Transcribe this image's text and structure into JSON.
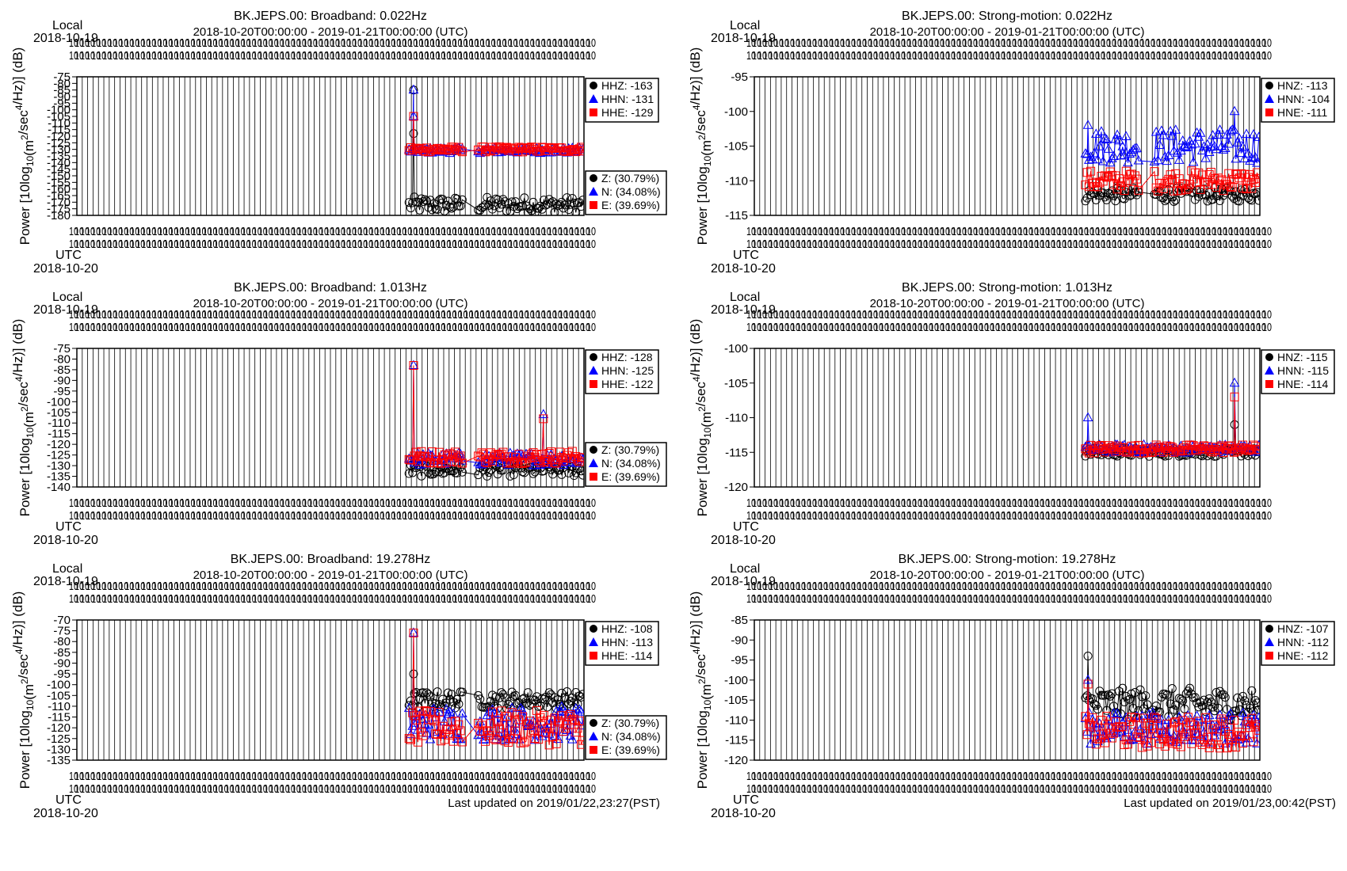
{
  "ylabel_text": "Power [10log",
  "ylabel_sub": "10",
  "ylabel_mid": "(m",
  "ylabel_sup1": "2",
  "ylabel_mid2": "/sec",
  "ylabel_sup2": "4",
  "ylabel_tail": "/Hz)] (dB)",
  "local_label": "Local",
  "local_date": "2018-10-19",
  "utc_label": "UTC",
  "utc_date": "2018-10-20",
  "date_range": "2018-10-20T00:00:00 - 2019-01-21T00:00:00 (UTC)",
  "colors": {
    "Z": "#000000",
    "N": "#0000ff",
    "E": "#ff0000"
  },
  "chart_data": [
    {
      "type": "scatter",
      "title": "BK.JEPS.00: Broadband: 0.022Hz",
      "ylim": [
        -180,
        -75
      ],
      "yticks": [
        -75,
        -80,
        -85,
        -90,
        -95,
        -100,
        -105,
        -110,
        -115,
        -120,
        -125,
        -130,
        -135,
        -140,
        -145,
        -150,
        -155,
        -160,
        -165,
        -170,
        -175,
        -180
      ],
      "legend_top": [
        "HHZ: -163",
        "HHN: -131",
        "HHE: -129"
      ],
      "legend_bottom": [
        "Z: (30.79%)",
        "N: (34.08%)",
        "E: (39.69%)"
      ],
      "footer": "",
      "data_start_frac": 0.655,
      "gap": [
        0.76,
        0.79
      ],
      "series": [
        {
          "key": "Z",
          "base": -172,
          "spread": 6,
          "spikes": [
            [
              0.664,
              -85
            ],
            [
              0.664,
              -118
            ]
          ]
        },
        {
          "key": "N",
          "base": -131,
          "spread": 2,
          "spikes": [
            [
              0.664,
              -85
            ],
            [
              0.664,
              -105
            ]
          ]
        },
        {
          "key": "E",
          "base": -130,
          "spread": 2,
          "spikes": [
            [
              0.664,
              -105
            ]
          ]
        }
      ]
    },
    {
      "type": "scatter",
      "title": "BK.JEPS.00: Strong-motion: 0.022Hz",
      "ylim": [
        -115,
        -95
      ],
      "yticks": [
        -95,
        -100,
        -105,
        -110,
        -115
      ],
      "legend_top": [
        "HNZ: -113",
        "HNN: -104",
        "HNE: -111"
      ],
      "legend_bottom": [],
      "footer": "",
      "data_start_frac": 0.655,
      "gap": [
        0.76,
        0.79
      ],
      "series": [
        {
          "key": "Z",
          "base": -112,
          "spread": 1,
          "spikes": []
        },
        {
          "key": "N",
          "base": -105,
          "spread": 2.5,
          "spikes": [
            [
              0.66,
              -102
            ],
            [
              0.95,
              -100
            ]
          ]
        },
        {
          "key": "E",
          "base": -110,
          "spread": 1.5,
          "spikes": []
        }
      ]
    },
    {
      "type": "scatter",
      "title": "BK.JEPS.00: Broadband: 1.013Hz",
      "ylim": [
        -140,
        -75
      ],
      "yticks": [
        -75,
        -80,
        -85,
        -90,
        -95,
        -100,
        -105,
        -110,
        -115,
        -120,
        -125,
        -130,
        -135,
        -140
      ],
      "legend_top": [
        "HHZ: -128",
        "HHN: -125",
        "HHE: -122"
      ],
      "legend_bottom": [
        "Z: (30.79%)",
        "N: (34.08%)",
        "E: (39.69%)"
      ],
      "footer": "",
      "data_start_frac": 0.655,
      "gap": [
        0.76,
        0.79
      ],
      "series": [
        {
          "key": "Z",
          "base": -132,
          "spread": 3,
          "spikes": []
        },
        {
          "key": "N",
          "base": -127,
          "spread": 3,
          "spikes": [
            [
              0.664,
              -83
            ],
            [
              0.92,
              -106
            ]
          ]
        },
        {
          "key": "E",
          "base": -126,
          "spread": 3,
          "spikes": [
            [
              0.664,
              -83
            ],
            [
              0.92,
              -108
            ]
          ]
        }
      ]
    },
    {
      "type": "scatter",
      "title": "BK.JEPS.00: Strong-motion: 1.013Hz",
      "ylim": [
        -120,
        -100
      ],
      "yticks": [
        -100,
        -105,
        -110,
        -115,
        -120
      ],
      "legend_top": [
        "HNZ: -115",
        "HNN: -115",
        "HNE: -114"
      ],
      "legend_bottom": [],
      "footer": "",
      "data_start_frac": 0.655,
      "gap": [
        2,
        2
      ],
      "series": [
        {
          "key": "Z",
          "base": -115,
          "spread": 0.6,
          "spikes": [
            [
              0.95,
              -111
            ]
          ]
        },
        {
          "key": "N",
          "base": -114.5,
          "spread": 0.6,
          "spikes": [
            [
              0.66,
              -110
            ],
            [
              0.95,
              -105
            ]
          ]
        },
        {
          "key": "E",
          "base": -114.5,
          "spread": 0.6,
          "spikes": [
            [
              0.95,
              -107
            ]
          ]
        }
      ]
    },
    {
      "type": "scatter",
      "title": "BK.JEPS.00: Broadband: 19.278Hz",
      "ylim": [
        -135,
        -70
      ],
      "yticks": [
        -70,
        -75,
        -80,
        -85,
        -90,
        -95,
        -100,
        -105,
        -110,
        -115,
        -120,
        -125,
        -130,
        -135
      ],
      "legend_top": [
        "HHZ: -108",
        "HHN: -113",
        "HHE: -114"
      ],
      "legend_bottom": [
        "Z: (30.79%)",
        "N: (34.08%)",
        "E: (39.69%)"
      ],
      "footer": "Last updated on 2019/01/22,23:27(PST)",
      "data_start_frac": 0.655,
      "gap": [
        0.76,
        0.79
      ],
      "series": [
        {
          "key": "Z",
          "base": -107,
          "spread": 4,
          "spikes": [
            [
              0.664,
              -95
            ]
          ]
        },
        {
          "key": "N",
          "base": -118,
          "spread": 8,
          "spikes": [
            [
              0.664,
              -76
            ]
          ]
        },
        {
          "key": "E",
          "base": -120,
          "spread": 8,
          "spikes": [
            [
              0.664,
              -76
            ]
          ]
        }
      ]
    },
    {
      "type": "scatter",
      "title": "BK.JEPS.00: Strong-motion: 19.278Hz",
      "ylim": [
        -120,
        -85
      ],
      "yticks": [
        -85,
        -90,
        -95,
        -100,
        -105,
        -110,
        -115,
        -120
      ],
      "legend_top": [
        "HNZ: -107",
        "HNN: -112",
        "HNE: -112"
      ],
      "legend_bottom": [],
      "footer": "Last updated on 2019/01/23,00:42(PST)",
      "data_start_frac": 0.655,
      "gap": [
        2,
        2
      ],
      "series": [
        {
          "key": "Z",
          "base": -106,
          "spread": 4,
          "spikes": [
            [
              0.66,
              -94
            ]
          ]
        },
        {
          "key": "N",
          "base": -112,
          "spread": 4,
          "spikes": [
            [
              0.66,
              -100
            ]
          ]
        },
        {
          "key": "E",
          "base": -113,
          "spread": 4,
          "spikes": [
            [
              0.66,
              -101
            ]
          ]
        }
      ]
    }
  ]
}
